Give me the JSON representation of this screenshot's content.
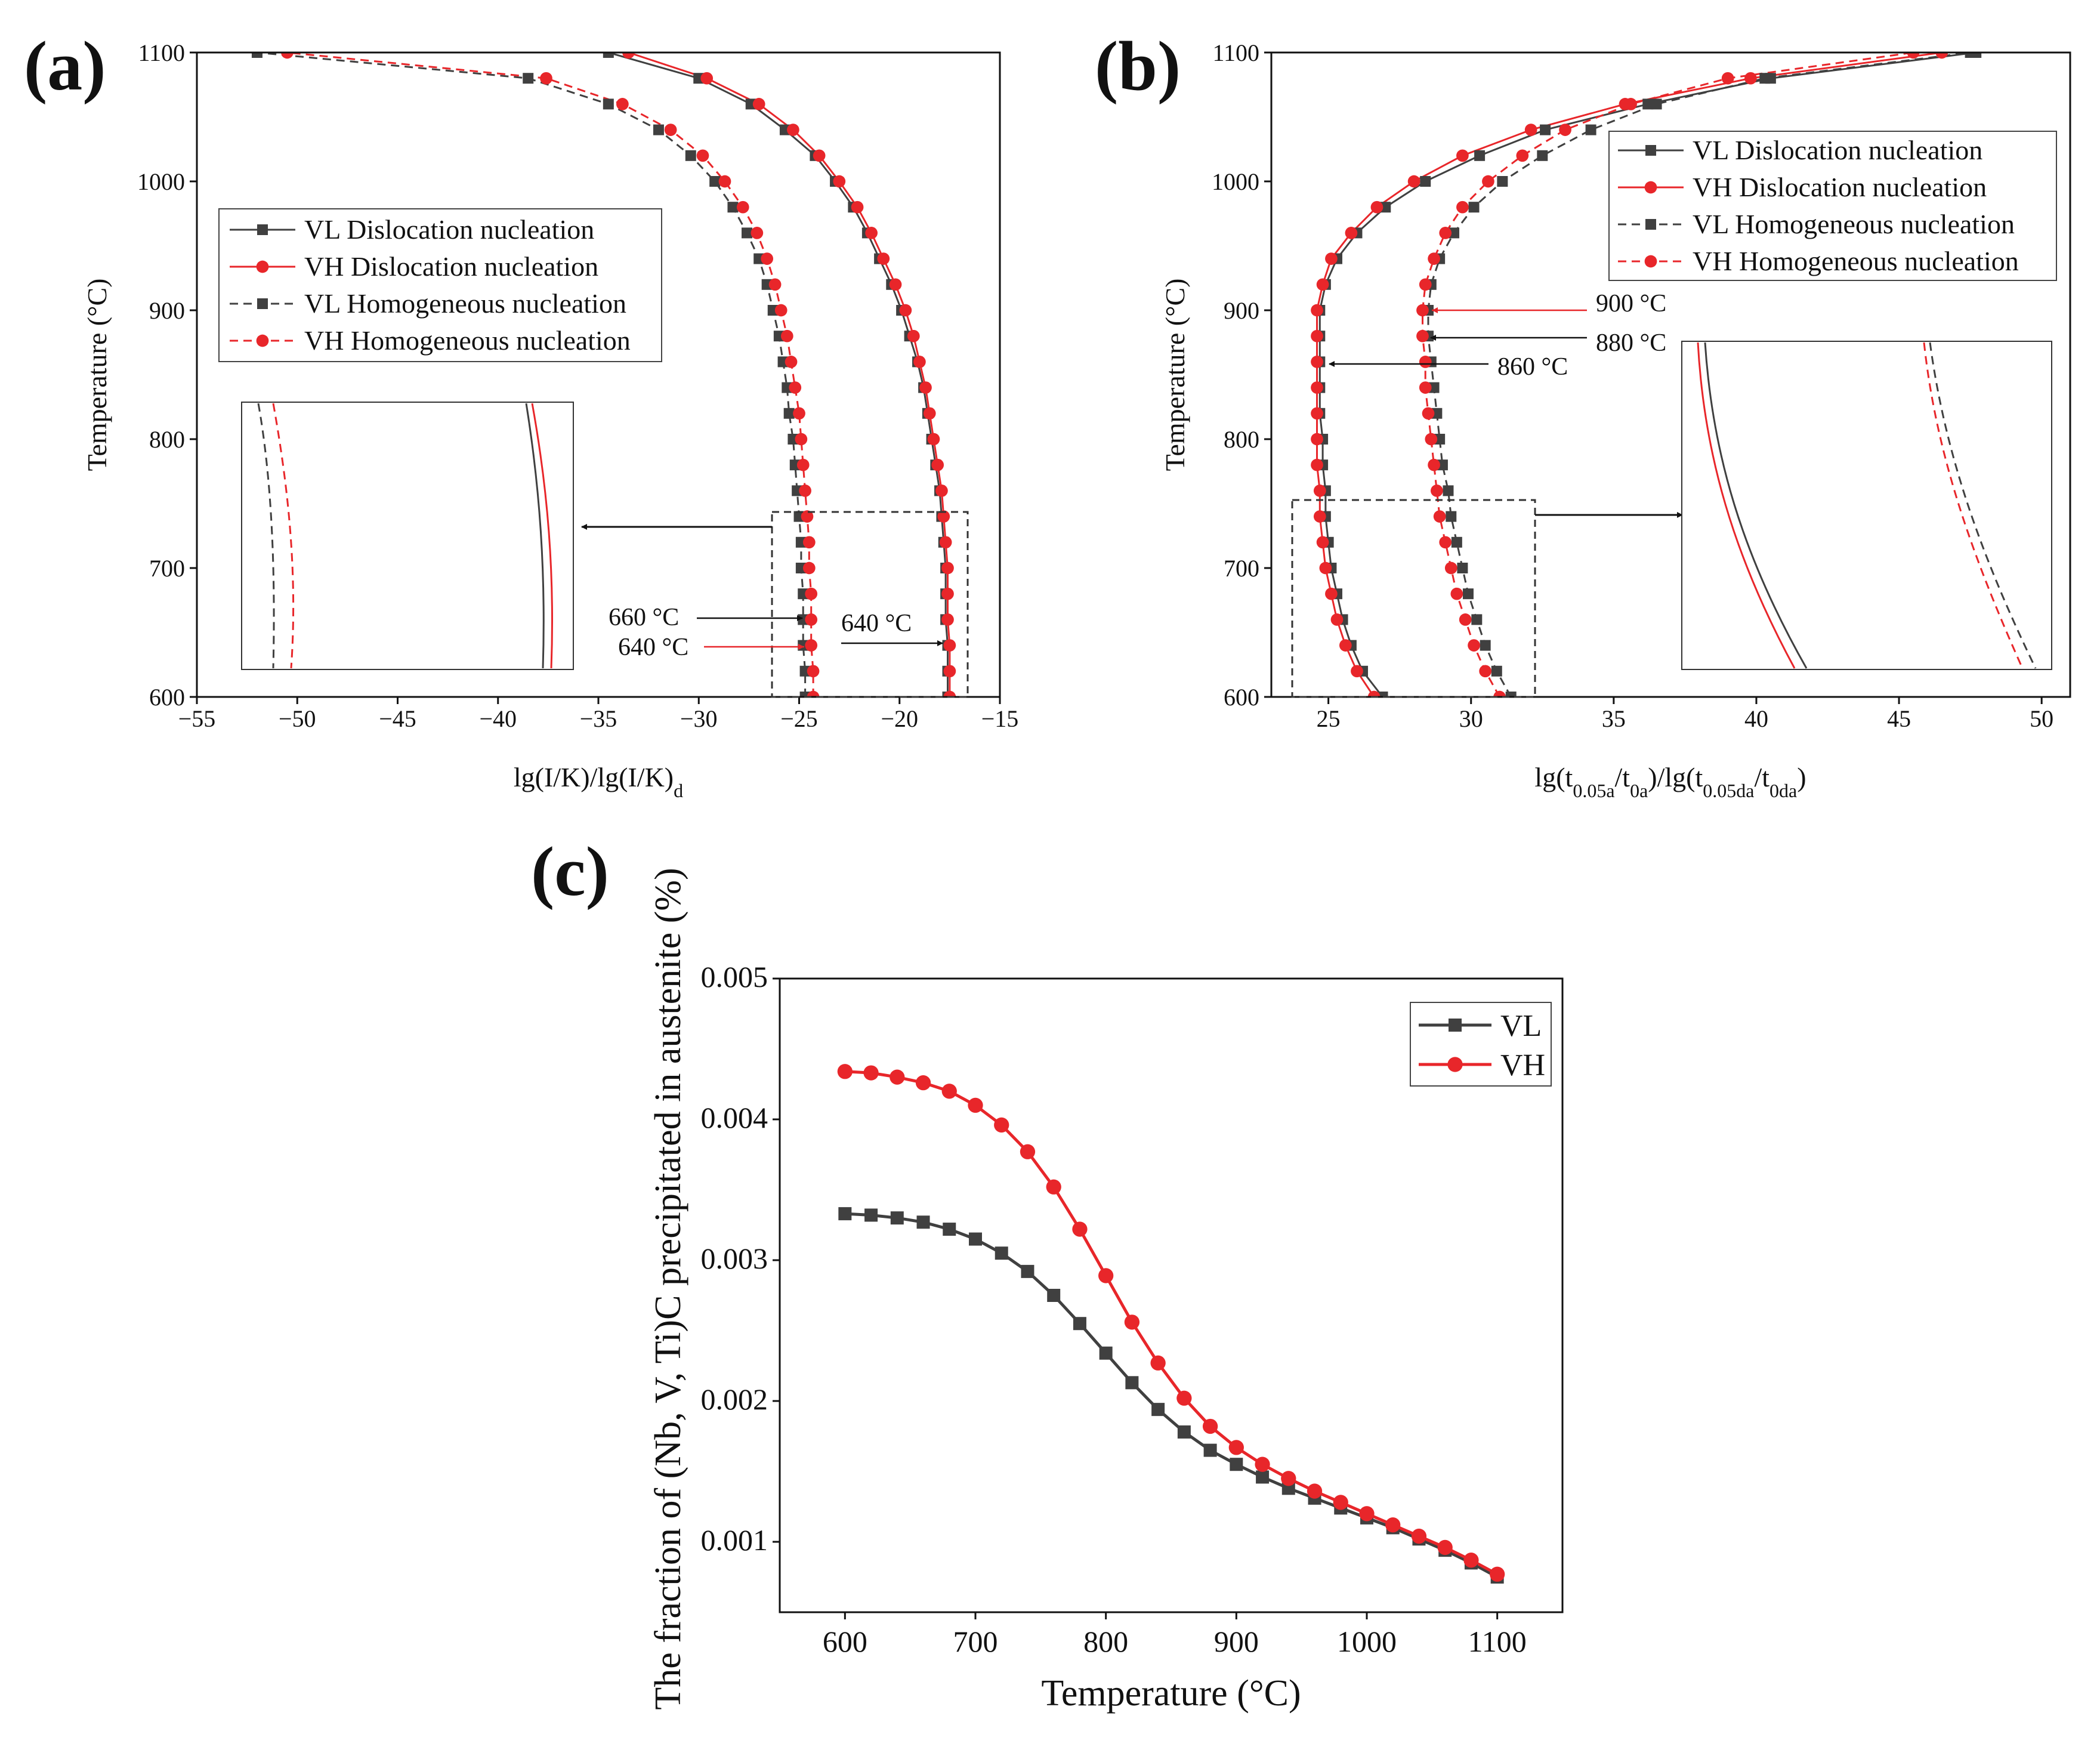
{
  "figure": {
    "colors": {
      "vl": "#404040",
      "vh": "#e8262a",
      "axis": "#111111"
    },
    "panel_a": {
      "label": "(a)",
      "inset_label_a": "660 °C",
      "inset_label_b": "640 °C",
      "inset_label_c": "640 °C"
    },
    "panel_b": {
      "label": "(b)",
      "annot_1": "900 °C",
      "annot_2": "880 °C",
      "annot_3": "860 °C"
    },
    "panel_c": {
      "label": "(c)"
    }
  },
  "chart_data": [
    {
      "id": "a",
      "type": "line",
      "title": "",
      "xlabel_main": "lg(I/K)/lg(I/K)",
      "xlabel_sub": "d",
      "ylabel": "Temperature (°C)",
      "xlim": [
        -55,
        -15
      ],
      "ylim": [
        600,
        1100
      ],
      "xticks": [
        -55,
        -50,
        -45,
        -40,
        -35,
        -30,
        -25,
        -20,
        -15
      ],
      "yticks": [
        600,
        700,
        800,
        900,
        1000,
        1100
      ],
      "xtick_labels": [
        "−55",
        "−50",
        "−45",
        "−40",
        "−35",
        "−30",
        "−25",
        "−20",
        "−15"
      ],
      "ytick_labels": [
        "600",
        "700",
        "800",
        "900",
        "1000",
        "1100"
      ],
      "legend_position": "upper-left",
      "y": [
        600,
        620,
        640,
        660,
        680,
        700,
        720,
        740,
        760,
        780,
        800,
        820,
        840,
        860,
        880,
        900,
        920,
        940,
        960,
        980,
        1000,
        1020,
        1040,
        1060,
        1080,
        1100
      ],
      "series": [
        {
          "name": "VL Dislocation nucleation",
          "color": "#404040",
          "marker": "square",
          "dash": false,
          "x": [
            -17.6,
            -17.6,
            -17.6,
            -17.7,
            -17.7,
            -17.7,
            -17.8,
            -17.9,
            -18.0,
            -18.2,
            -18.4,
            -18.6,
            -18.8,
            -19.1,
            -19.5,
            -19.9,
            -20.4,
            -21.0,
            -21.6,
            -22.3,
            -23.2,
            -24.2,
            -25.7,
            -27.4,
            -30.0,
            -34.5
          ]
        },
        {
          "name": "VH Dislocation nucleation",
          "color": "#e8262a",
          "marker": "circle",
          "dash": false,
          "x": [
            -17.5,
            -17.5,
            -17.5,
            -17.6,
            -17.6,
            -17.6,
            -17.7,
            -17.8,
            -17.9,
            -18.1,
            -18.3,
            -18.5,
            -18.7,
            -19.0,
            -19.3,
            -19.7,
            -20.2,
            -20.8,
            -21.4,
            -22.1,
            -23.0,
            -24.0,
            -25.3,
            -27.0,
            -29.6,
            -33.5
          ]
        },
        {
          "name": "VL Homogeneous nucleation",
          "color": "#404040",
          "marker": "square",
          "dash": true,
          "x": [
            -24.7,
            -24.7,
            -24.8,
            -24.8,
            -24.8,
            -24.9,
            -24.9,
            -25.0,
            -25.1,
            -25.2,
            -25.3,
            -25.5,
            -25.6,
            -25.8,
            -26.0,
            -26.3,
            -26.6,
            -27.0,
            -27.6,
            -28.3,
            -29.2,
            -30.4,
            -32.0,
            -34.5,
            -38.5,
            -52.0
          ]
        },
        {
          "name": "VH Homogeneous nucleation",
          "color": "#e8262a",
          "marker": "circle",
          "dash": true,
          "x": [
            -24.3,
            -24.3,
            -24.4,
            -24.4,
            -24.4,
            -24.5,
            -24.5,
            -24.6,
            -24.7,
            -24.8,
            -24.9,
            -25.0,
            -25.2,
            -25.4,
            -25.6,
            -25.9,
            -26.2,
            -26.6,
            -27.1,
            -27.8,
            -28.7,
            -29.8,
            -31.4,
            -33.8,
            -37.6,
            -50.5
          ]
        }
      ]
    },
    {
      "id": "b",
      "type": "line",
      "title": "",
      "xlabel": "lg(t0.05a/t0a)/lg(t0.05da/t0da)",
      "ylabel": "Temperature (°C)",
      "xlim": [
        23,
        51
      ],
      "ylim": [
        600,
        1100
      ],
      "xticks": [
        25,
        30,
        35,
        40,
        45,
        50
      ],
      "yticks": [
        600,
        700,
        800,
        900,
        1000,
        1100
      ],
      "xtick_labels": [
        "25",
        "30",
        "35",
        "40",
        "45",
        "50"
      ],
      "ytick_labels": [
        "600",
        "700",
        "800",
        "900",
        "1000",
        "1100"
      ],
      "legend_position": "upper-right",
      "y": [
        600,
        620,
        640,
        660,
        680,
        700,
        720,
        740,
        760,
        780,
        800,
        820,
        840,
        860,
        880,
        900,
        920,
        940,
        960,
        980,
        1000,
        1020,
        1040,
        1060,
        1080,
        1100
      ],
      "series": [
        {
          "name": "VL Dislocation nucleation",
          "color": "#404040",
          "marker": "square",
          "dash": false,
          "x": [
            26.9,
            26.2,
            25.8,
            25.5,
            25.3,
            25.1,
            25.0,
            24.9,
            24.9,
            24.8,
            24.8,
            24.7,
            24.7,
            24.7,
            24.7,
            24.7,
            24.9,
            25.3,
            26.0,
            27.0,
            28.4,
            30.3,
            32.6,
            36.2,
            40.5,
            47.7
          ]
        },
        {
          "name": "VH Dislocation nucleation",
          "color": "#e8262a",
          "marker": "circle",
          "dash": false,
          "x": [
            26.6,
            26.0,
            25.6,
            25.3,
            25.1,
            24.9,
            24.8,
            24.7,
            24.7,
            24.6,
            24.6,
            24.6,
            24.6,
            24.6,
            24.6,
            24.6,
            24.8,
            25.1,
            25.8,
            26.7,
            28.0,
            29.7,
            32.1,
            35.4,
            39.8,
            46.5
          ]
        },
        {
          "name": "VL Homogeneous nucleation",
          "color": "#404040",
          "marker": "square",
          "dash": true,
          "x": [
            31.4,
            30.9,
            30.5,
            30.2,
            29.9,
            29.7,
            29.5,
            29.3,
            29.2,
            29.0,
            28.9,
            28.8,
            28.7,
            28.6,
            28.5,
            28.5,
            28.6,
            28.9,
            29.4,
            30.1,
            31.1,
            32.5,
            34.2,
            36.5,
            40.3,
            47.5
          ]
        },
        {
          "name": "VH Homogeneous nucleation",
          "color": "#e8262a",
          "marker": "circle",
          "dash": true,
          "x": [
            31.0,
            30.5,
            30.1,
            29.8,
            29.5,
            29.3,
            29.1,
            28.9,
            28.8,
            28.7,
            28.6,
            28.5,
            28.4,
            28.4,
            28.3,
            28.3,
            28.4,
            28.7,
            29.1,
            29.7,
            30.6,
            31.8,
            33.3,
            35.6,
            39.0,
            45.5
          ]
        }
      ]
    },
    {
      "id": "c",
      "type": "line",
      "title": "",
      "xlabel": "Temperature (°C)",
      "ylabel": "The fraction of (Nb, V, Ti)C precipitated in austenite (%)",
      "xlim": [
        550,
        1150
      ],
      "ylim": [
        0.0005,
        0.005
      ],
      "xticks": [
        600,
        700,
        800,
        900,
        1000,
        1100
      ],
      "yticks": [
        0.001,
        0.002,
        0.003,
        0.004,
        0.005
      ],
      "xtick_labels": [
        "600",
        "700",
        "800",
        "900",
        "1000",
        "1100"
      ],
      "ytick_labels": [
        "0.001",
        "0.002",
        "0.003",
        "0.004",
        "0.005"
      ],
      "legend_position": "top-right",
      "x": [
        600,
        620,
        640,
        660,
        680,
        700,
        720,
        740,
        760,
        780,
        800,
        820,
        840,
        860,
        880,
        900,
        920,
        940,
        960,
        980,
        1000,
        1020,
        1040,
        1060,
        1080,
        1100
      ],
      "series": [
        {
          "name": "VL",
          "color": "#404040",
          "marker": "square",
          "values": [
            0.00333,
            0.00332,
            0.0033,
            0.00327,
            0.00322,
            0.00315,
            0.00305,
            0.00292,
            0.00275,
            0.00255,
            0.00234,
            0.00213,
            0.00194,
            0.00178,
            0.00165,
            0.00155,
            0.00146,
            0.00138,
            0.00131,
            0.00124,
            0.00117,
            0.0011,
            0.00102,
            0.00094,
            0.00085,
            0.00075
          ]
        },
        {
          "name": "VH",
          "color": "#e8262a",
          "marker": "circle",
          "values": [
            0.00434,
            0.00433,
            0.0043,
            0.00426,
            0.0042,
            0.0041,
            0.00396,
            0.00377,
            0.00352,
            0.00322,
            0.00289,
            0.00256,
            0.00227,
            0.00202,
            0.00182,
            0.00167,
            0.00155,
            0.00145,
            0.00136,
            0.00128,
            0.0012,
            0.00112,
            0.00104,
            0.00096,
            0.00087,
            0.00077
          ]
        }
      ]
    }
  ]
}
